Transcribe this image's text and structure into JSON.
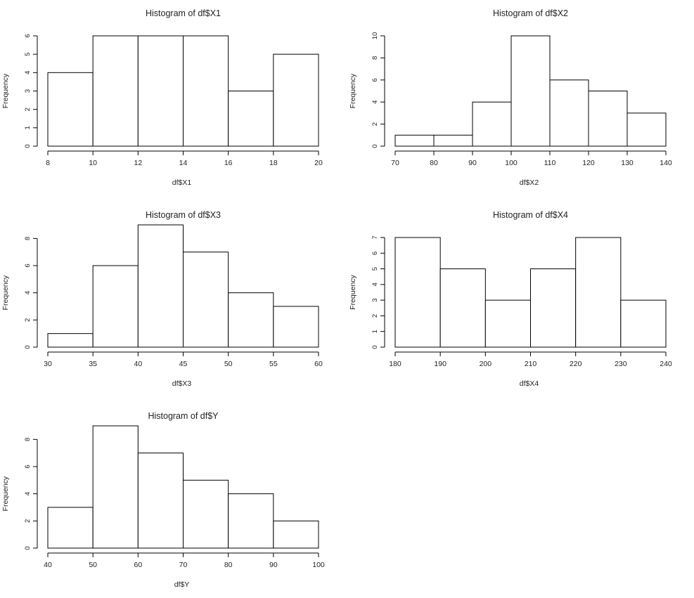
{
  "chart_data": [
    {
      "type": "bar",
      "title": "Histogram of df$X1",
      "xlabel": "df$X1",
      "ylabel": "Frequency",
      "bin_edges": [
        8,
        10,
        12,
        14,
        16,
        18,
        20
      ],
      "values": [
        4,
        6,
        6,
        6,
        3,
        5
      ],
      "xticks": [
        8,
        10,
        12,
        14,
        16,
        18,
        20
      ],
      "yticks": [
        0,
        1,
        2,
        3,
        4,
        5,
        6
      ],
      "xlim": [
        8,
        20
      ],
      "ylim": [
        0,
        6
      ],
      "grid": false
    },
    {
      "type": "bar",
      "title": "Histogram of df$X2",
      "xlabel": "df$X2",
      "ylabel": "Frequency",
      "bin_edges": [
        70,
        80,
        90,
        100,
        110,
        120,
        130,
        140
      ],
      "values": [
        1,
        1,
        4,
        10,
        6,
        5,
        3
      ],
      "xticks": [
        70,
        80,
        90,
        100,
        110,
        120,
        130,
        140
      ],
      "yticks": [
        0,
        2,
        4,
        6,
        8,
        10
      ],
      "xlim": [
        70,
        140
      ],
      "ylim": [
        0,
        10
      ],
      "grid": false
    },
    {
      "type": "bar",
      "title": "Histogram of df$X3",
      "xlabel": "df$X3",
      "ylabel": "Frequency",
      "bin_edges": [
        30,
        35,
        40,
        45,
        50,
        55,
        60
      ],
      "values": [
        1,
        6,
        9,
        7,
        4,
        3
      ],
      "xticks": [
        30,
        35,
        40,
        45,
        50,
        55,
        60
      ],
      "yticks": [
        0,
        2,
        4,
        6,
        8
      ],
      "xlim": [
        30,
        60
      ],
      "ylim": [
        0,
        9
      ],
      "grid": false
    },
    {
      "type": "bar",
      "title": "Histogram of df$X4",
      "xlabel": "df$X4",
      "ylabel": "Frequency",
      "bin_edges": [
        180,
        190,
        200,
        210,
        220,
        230,
        240
      ],
      "values": [
        7,
        5,
        3,
        5,
        7,
        3
      ],
      "xticks": [
        180,
        190,
        200,
        210,
        220,
        230,
        240
      ],
      "yticks": [
        0,
        1,
        2,
        3,
        4,
        5,
        6,
        7
      ],
      "xlim": [
        180,
        240
      ],
      "ylim": [
        0,
        7
      ],
      "grid": false
    },
    {
      "type": "bar",
      "title": "Histogram of df$Y",
      "xlabel": "df$Y",
      "ylabel": "Frequency",
      "bin_edges": [
        40,
        50,
        60,
        70,
        80,
        90,
        100
      ],
      "values": [
        3,
        9,
        7,
        5,
        4,
        2
      ],
      "xticks": [
        40,
        50,
        60,
        70,
        80,
        90,
        100
      ],
      "yticks": [
        0,
        2,
        4,
        6,
        8
      ],
      "xlim": [
        40,
        100
      ],
      "ylim": [
        0,
        9
      ],
      "grid": false
    }
  ]
}
